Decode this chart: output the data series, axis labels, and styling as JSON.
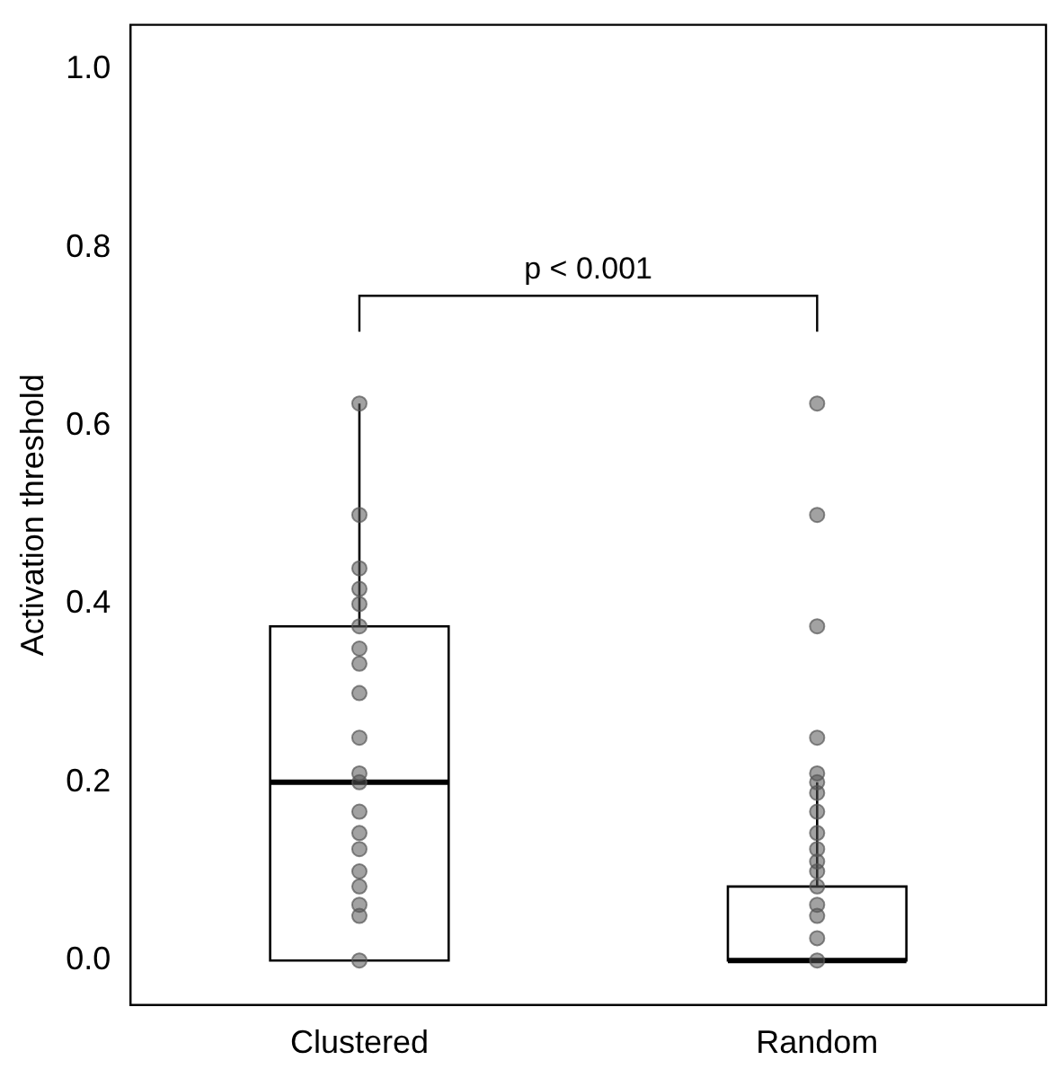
{
  "chart_data": {
    "type": "box",
    "ylabel": "Activation threshold",
    "categories": [
      "Clustered",
      "Random"
    ],
    "boxes": [
      {
        "low": 0,
        "q1": 0,
        "median": 0.2,
        "q3": 0.375,
        "high": 0.625
      },
      {
        "low": 0,
        "q1": 0,
        "median": 0,
        "q3": 0.083,
        "high": 0.2
      }
    ],
    "ylim": [
      -0.05,
      1.05
    ],
    "yticks": [
      {
        "value": 0,
        "label": "0.0"
      },
      {
        "value": 0.2,
        "label": "0.2"
      },
      {
        "value": 0.4,
        "label": "0.4"
      },
      {
        "value": 0.6,
        "label": "0.6"
      },
      {
        "value": 0.8,
        "label": "0.8"
      },
      {
        "value": 1,
        "label": "1.0"
      }
    ],
    "grid": false,
    "series": [
      {
        "type": "scatter",
        "color": "#555555",
        "x": [
          "Clustered",
          "Clustered",
          "Clustered",
          "Clustered",
          "Clustered",
          "Clustered",
          "Clustered",
          "Clustered",
          "Clustered",
          "Clustered",
          "Clustered",
          "Clustered",
          "Clustered",
          "Clustered",
          "Clustered",
          "Clustered",
          "Clustered",
          "Clustered",
          "Clustered",
          "Clustered",
          "Random",
          "Random",
          "Random",
          "Random",
          "Random",
          "Random",
          "Random",
          "Random",
          "Random",
          "Random",
          "Random",
          "Random",
          "Random",
          "Random",
          "Random",
          "Random",
          "Random"
        ],
        "values": [
          0,
          0.05,
          0.0625,
          0.083,
          0.1,
          0.125,
          0.143,
          0.167,
          0.2,
          0.21,
          0.25,
          0.3,
          0.333,
          0.35,
          0.375,
          0.4,
          0.417,
          0.44,
          0.5,
          0.625,
          0,
          0.025,
          0.05,
          0.0625,
          0.083,
          0.1,
          0.111,
          0.125,
          0.143,
          0.167,
          0.188,
          0.2,
          0.25,
          0.375,
          0.5,
          0.625,
          0.21
        ]
      }
    ],
    "annotations": [
      "p < 0.001"
    ]
  }
}
